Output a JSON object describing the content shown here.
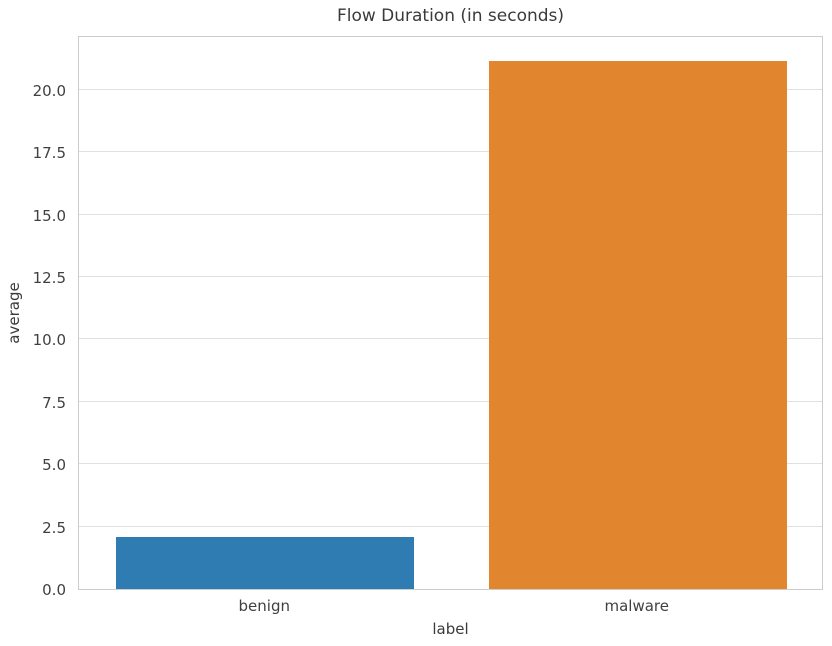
{
  "chart_data": {
    "type": "bar",
    "title": "Flow Duration (in seconds)",
    "xlabel": "label",
    "ylabel": "average",
    "categories": [
      "benign",
      "malware"
    ],
    "values": [
      2.08,
      21.16
    ],
    "bar_colors": [
      "#2e7cb1",
      "#e1862e"
    ],
    "ylim": [
      0,
      22.2
    ],
    "yticks": [
      0,
      2.5,
      5,
      7.5,
      10,
      12.5,
      15,
      17.5,
      20
    ],
    "ytick_labels": [
      "0.0",
      "2.5",
      "5.0",
      "7.5",
      "10.0",
      "12.5",
      "15.0",
      "17.5",
      "20.0"
    ],
    "bar_width_fraction": 0.8,
    "grid": "horizontal",
    "legend": "none",
    "grid_color": "#e0e0e0",
    "spine_color": "#cccccc",
    "text_color": "#3a3a3a",
    "tick_text_color": "#404040",
    "background_color": "#ffffff"
  }
}
